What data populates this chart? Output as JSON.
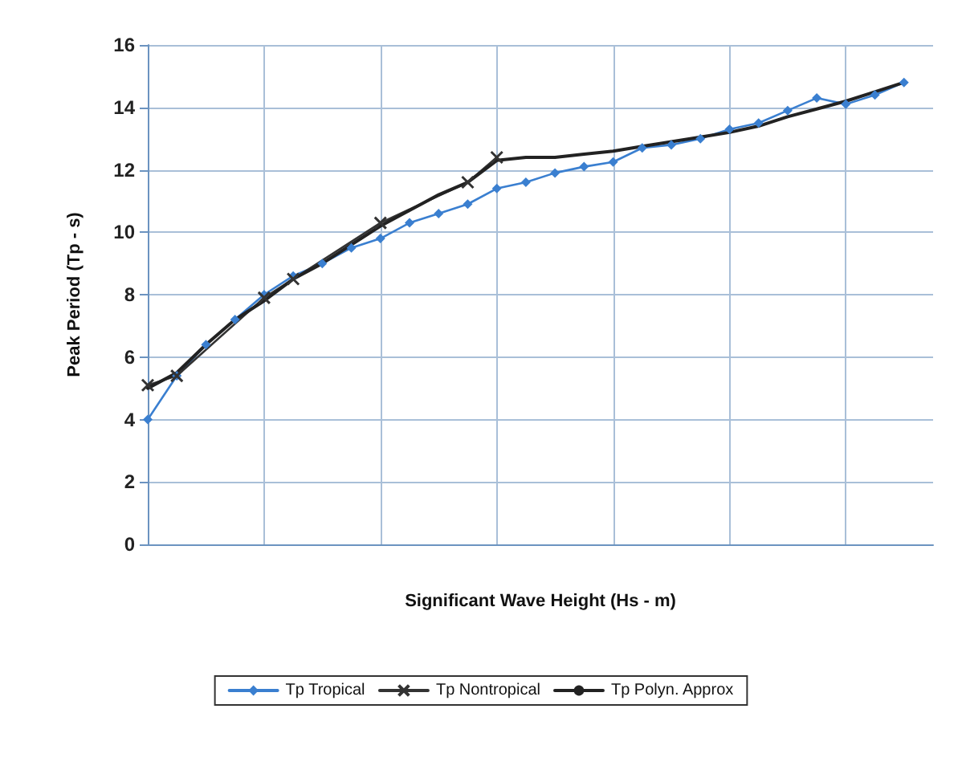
{
  "chart_data": {
    "type": "line",
    "xlabel": "Significant Wave Height (Hs - m)",
    "ylabel": "Peak Period (Tp - s)",
    "categories": [
      null,
      null,
      null,
      null,
      null,
      null,
      null,
      null,
      null,
      null,
      null,
      null,
      null,
      null,
      null,
      null,
      null,
      null,
      null,
      null,
      null,
      null,
      null,
      null,
      null,
      null,
      null,
      null
    ],
    "ylim": [
      0,
      16
    ],
    "yticks": [
      0,
      2,
      4,
      6,
      8,
      10,
      12,
      14,
      16
    ],
    "tick_labels": "y",
    "grid": true,
    "legend": "bottom",
    "line_style": "solid",
    "series": [
      {
        "name": "Tp Tropical",
        "color": "#3a7fd0",
        "marker": "diamond",
        "values": [
          4.0,
          5.4,
          6.4,
          7.2,
          8.0,
          8.6,
          9.0,
          9.5,
          9.8,
          10.3,
          10.6,
          10.9,
          11.4,
          11.6,
          11.9,
          12.1,
          12.25,
          12.7,
          12.8,
          13.0,
          13.3,
          13.5,
          13.9,
          14.3,
          14.1,
          14.4,
          14.8,
          null
        ]
      },
      {
        "name": "Tp Nontropical",
        "color": "#333333",
        "marker": "cross",
        "values": [
          5.1,
          5.4,
          null,
          null,
          7.9,
          8.5,
          null,
          null,
          10.3,
          null,
          null,
          11.6,
          12.4,
          null,
          null,
          null,
          null,
          null,
          null,
          null,
          null,
          null,
          null,
          null,
          null,
          null,
          null,
          null
        ]
      },
      {
        "name": "Tp Polyn. Approx",
        "color": "#222222",
        "marker": "none",
        "values": [
          5.0,
          5.5,
          6.4,
          7.2,
          7.8,
          8.5,
          9.0,
          9.6,
          10.2,
          10.7,
          11.2,
          11.6,
          12.3,
          12.4,
          12.4,
          12.5,
          12.6,
          12.75,
          12.9,
          13.05,
          13.2,
          13.4,
          13.7,
          13.95,
          14.2,
          14.5,
          14.8,
          null
        ]
      }
    ]
  }
}
